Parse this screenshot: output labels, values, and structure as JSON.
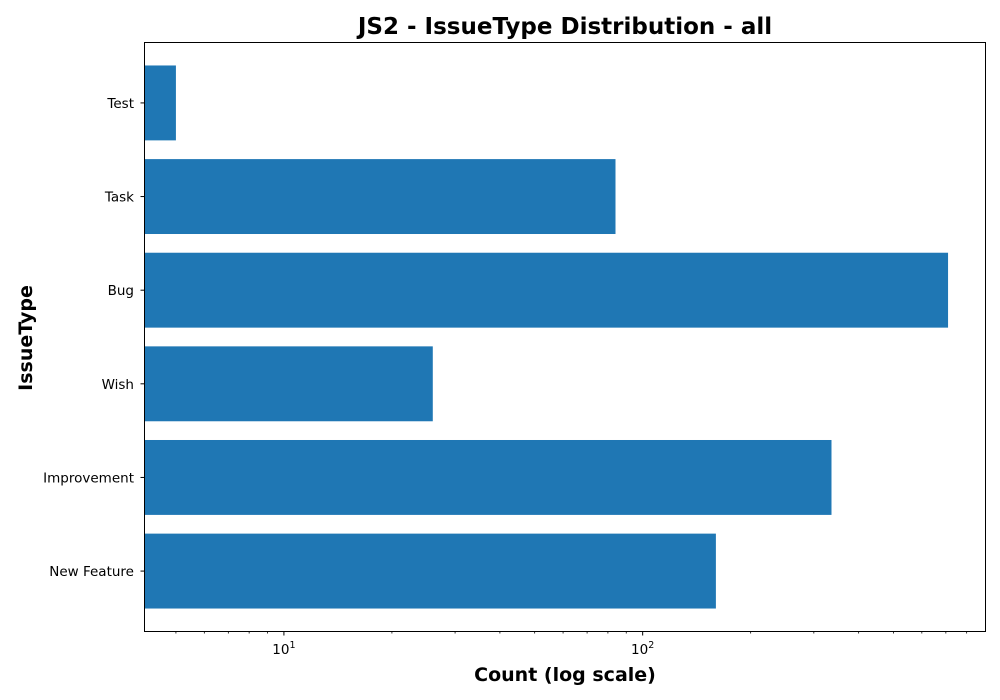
{
  "chart_data": {
    "type": "bar",
    "orientation": "horizontal",
    "title": "JS2 - IssueType Distribution - all",
    "xlabel": "Count (log scale)",
    "ylabel": "IssueType",
    "x_scale": "log",
    "xlim": [
      4.1,
      900
    ],
    "x_major_ticks": [
      {
        "base": "10",
        "exp": "1",
        "value": 10
      },
      {
        "base": "10",
        "exp": "2",
        "value": 100
      }
    ],
    "categories": [
      "Test",
      "Task",
      "Bug",
      "Wish",
      "Improvement",
      "New Feature"
    ],
    "values": [
      5,
      84,
      710,
      26,
      336,
      160
    ],
    "bar_color": "#1f77b4",
    "grid": false,
    "legend": false
  }
}
